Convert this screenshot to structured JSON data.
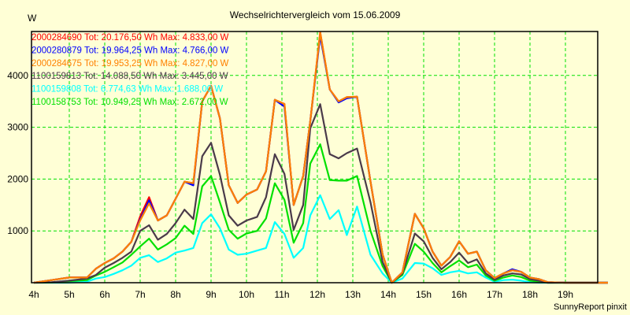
{
  "chart_data": {
    "type": "line",
    "title": "Wechselrichtervergleich vom 15.06.2009",
    "ylabel": "W",
    "xlabel": "",
    "footer": "SunnyReport pinxit",
    "xlim": [
      4,
      20.2
    ],
    "ylim": [
      0,
      4850
    ],
    "grid": true,
    "x_ticks": [
      "4h",
      "5h",
      "6h",
      "7h",
      "8h",
      "9h",
      "10h",
      "11h",
      "12h",
      "13h",
      "14h",
      "15h",
      "16h",
      "17h",
      "18h",
      "19h"
    ],
    "x_tick_values": [
      4,
      5,
      6,
      7,
      8,
      9,
      10,
      11,
      12,
      13,
      14,
      15,
      16,
      17,
      18,
      19
    ],
    "y_ticks": [
      "1000",
      "2000",
      "3000",
      "4000"
    ],
    "y_tick_values": [
      1000,
      2000,
      3000,
      4000
    ],
    "legend_position": "top-left",
    "x": [
      4,
      4.5,
      5,
      5.5,
      5.75,
      6,
      6.25,
      6.5,
      6.75,
      7,
      7.25,
      7.5,
      7.75,
      8,
      8.25,
      8.5,
      8.75,
      9,
      9.25,
      9.5,
      9.75,
      10,
      10.3,
      10.55,
      10.8,
      11.07,
      11.33,
      11.6,
      11.8,
      12.08,
      12.35,
      12.6,
      12.83,
      13.12,
      13.5,
      13.84,
      14.1,
      14.4,
      14.75,
      15,
      15.25,
      15.5,
      15.75,
      16,
      16.25,
      16.5,
      16.75,
      17,
      17.25,
      17.5,
      17.75,
      18,
      18.25,
      18.5,
      19,
      20.2
    ],
    "series": [
      {
        "name": "2000284690",
        "legend": "2000284690 Tot: 20.176,50 Wh Max: 4.833,00 W",
        "color": "#ff0000",
        "values": [
          0,
          50,
          100,
          100,
          270,
          380,
          470,
          600,
          790,
          1280,
          1650,
          1200,
          1300,
          1620,
          1950,
          1920,
          3500,
          3800,
          3170,
          1880,
          1540,
          1700,
          1800,
          2150,
          3530,
          3450,
          1500,
          2060,
          3120,
          4833,
          3730,
          3500,
          3580,
          3590,
          1950,
          545,
          0,
          200,
          1330,
          1050,
          600,
          330,
          500,
          800,
          560,
          600,
          240,
          90,
          180,
          240,
          210,
          100,
          70,
          10,
          0,
          0
        ]
      },
      {
        "name": "2000280879",
        "legend": "2000280879 Tot: 19.964,25 Wh Max: 4.766,00 W",
        "color": "#0000ff",
        "values": [
          0,
          50,
          100,
          100,
          270,
          380,
          470,
          600,
          790,
          1220,
          1590,
          1200,
          1300,
          1620,
          1950,
          1880,
          3500,
          3800,
          3170,
          1880,
          1540,
          1700,
          1800,
          2150,
          3530,
          3400,
          1500,
          2060,
          3120,
          4766,
          3730,
          3480,
          3560,
          3590,
          1950,
          545,
          0,
          200,
          1330,
          1050,
          600,
          330,
          500,
          800,
          560,
          600,
          240,
          90,
          180,
          260,
          210,
          100,
          70,
          10,
          0,
          0
        ]
      },
      {
        "name": "2000284675",
        "legend": "2000284675 Tot: 19.953,25 Wh Max: 4.827,00 W",
        "color": "#ff8000",
        "values": [
          0,
          50,
          100,
          100,
          270,
          380,
          470,
          600,
          790,
          1200,
          1530,
          1200,
          1300,
          1620,
          1950,
          1920,
          3500,
          3800,
          3170,
          1880,
          1540,
          1700,
          1800,
          2150,
          3530,
          3450,
          1500,
          2060,
          3120,
          4827,
          3730,
          3500,
          3580,
          3590,
          1950,
          545,
          0,
          200,
          1330,
          1050,
          600,
          330,
          500,
          800,
          560,
          600,
          240,
          90,
          180,
          240,
          210,
          100,
          70,
          10,
          0,
          0
        ]
      },
      {
        "name": "1100159813",
        "legend": "1100159813 Tot: 14.088,50 Wh Max: 3.445,00 W",
        "color": "#4a3a4a",
        "values": [
          0,
          10,
          40,
          80,
          150,
          290,
          380,
          480,
          600,
          1000,
          1110,
          830,
          940,
          1150,
          1410,
          1230,
          2440,
          2700,
          2080,
          1300,
          1100,
          1200,
          1270,
          1650,
          2480,
          2100,
          1020,
          1500,
          2980,
          3445,
          2480,
          2400,
          2500,
          2590,
          1550,
          400,
          0,
          180,
          950,
          800,
          480,
          260,
          400,
          580,
          380,
          450,
          180,
          60,
          140,
          180,
          160,
          70,
          40,
          0,
          0,
          0
        ]
      },
      {
        "name": "1100159808",
        "legend": "1100159808 Tot: 6.774,63 Wh Max: 1.688,00 W",
        "color": "#00ffff",
        "values": [
          0,
          0,
          0,
          20,
          80,
          110,
          170,
          240,
          330,
          480,
          530,
          400,
          470,
          580,
          620,
          670,
          1150,
          1320,
          1050,
          640,
          540,
          560,
          620,
          670,
          1170,
          940,
          480,
          670,
          1300,
          1688,
          1230,
          1400,
          920,
          1470,
          540,
          180,
          0,
          80,
          380,
          370,
          280,
          150,
          200,
          230,
          180,
          200,
          100,
          20,
          50,
          60,
          40,
          10,
          0,
          0,
          0,
          0
        ]
      },
      {
        "name": "1100158753",
        "legend": "1100158753 Tot: 10.949,25 Wh Max: 2.672,00 W",
        "color": "#00e000",
        "values": [
          0,
          5,
          30,
          50,
          140,
          210,
          300,
          390,
          540,
          700,
          850,
          640,
          740,
          860,
          1100,
          940,
          1860,
          2060,
          1550,
          1020,
          850,
          950,
          1000,
          1240,
          1920,
          1600,
          770,
          1150,
          2300,
          2672,
          1980,
          1970,
          1970,
          2060,
          1000,
          320,
          0,
          150,
          750,
          600,
          380,
          200,
          320,
          430,
          300,
          350,
          140,
          40,
          100,
          140,
          110,
          40,
          20,
          0,
          0,
          0
        ]
      }
    ],
    "draw_order": [
      4,
      5,
      3,
      0,
      1,
      2
    ],
    "colors": {
      "background": "#ffffd6",
      "grid": "#00e000",
      "axis": "#000000"
    }
  }
}
